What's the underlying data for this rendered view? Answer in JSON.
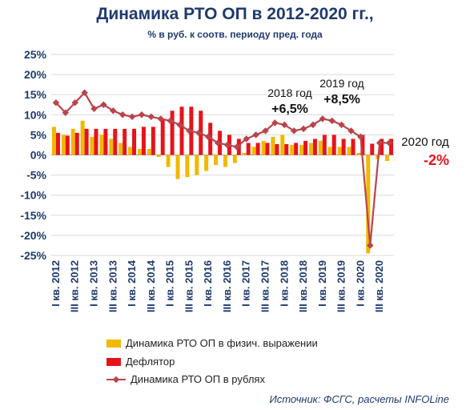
{
  "title": "Динамика РТО ОП в 2012-2020 гг.,",
  "subtitle": "% в руб. к соотв. периоду пред. года",
  "source": "Источник: ФСГС, расчеты INFOLine",
  "colors": {
    "physical": "#f2b800",
    "deflator": "#e5141a",
    "rubles": "#b8454b",
    "grid": "#d9d9d9"
  },
  "chart_data": {
    "type": "bar",
    "x_tick_labels": [
      "I кв. 2012",
      "III кв. 2012",
      "I кв. 2013",
      "III кв. 2013",
      "I кв. 2014",
      "III кв. 2014",
      "I кв. 2015",
      "III кв. 2015",
      "I кв. 2016",
      "III кв. 2016",
      "I кв. 2017",
      "III кв. 2017",
      "I кв. 2018",
      "III кв. 2018",
      "I кв. 2019",
      "III кв. 2019",
      "I кв. 2020",
      "III кв. 2020"
    ],
    "quarters": 36,
    "ylim": [
      -25,
      25
    ],
    "yticks": [
      "-25%",
      "-20%",
      "-15%",
      "-10%",
      "-5%",
      "0%",
      "5%",
      "10%",
      "15%",
      "20%",
      "25%"
    ],
    "grid": "horizontal",
    "series": [
      {
        "name": "Динамика РТО ОП в физич. выражении",
        "type": "bar",
        "values": [
          7,
          5,
          6.5,
          8.5,
          4.5,
          5,
          4,
          3,
          2,
          1.5,
          1.5,
          -0.5,
          -3,
          -6,
          -5.5,
          -5,
          -4,
          -2.5,
          -3,
          -2,
          0.5,
          2,
          3.5,
          4.5,
          5,
          2.5,
          2.5,
          3,
          3.5,
          2,
          2,
          2,
          0.5,
          -24.5,
          -1,
          -1.5
        ]
      },
      {
        "name": "Дефлятор",
        "type": "bar",
        "values": [
          5.5,
          4.8,
          5.5,
          6.5,
          6.5,
          6.5,
          6.5,
          6.5,
          6.5,
          7,
          7,
          9,
          11,
          12,
          12,
          11,
          8,
          6,
          5,
          4,
          3,
          3,
          3,
          2.7,
          2.7,
          3,
          3.5,
          4,
          5,
          5,
          4,
          4,
          5,
          2.8,
          4,
          4
        ]
      },
      {
        "name": "Динамика РТО ОП в рублях",
        "type": "line",
        "values": [
          13,
          10.5,
          13,
          15.5,
          11.5,
          12.5,
          11,
          10,
          9.5,
          10,
          9.5,
          9,
          8.5,
          7.5,
          6,
          5.5,
          4.5,
          3,
          2.5,
          2,
          4,
          5,
          6,
          8,
          7.5,
          6,
          6.5,
          7.5,
          9,
          8.5,
          7.5,
          6,
          4.5,
          -22.5,
          3,
          3
        ]
      }
    ],
    "annotations": [
      {
        "label": "2018 год",
        "value": "+6,5%"
      },
      {
        "label": "2019 год",
        "value": "+8,5%"
      },
      {
        "label": "2020 год",
        "value": "-2%"
      }
    ],
    "legend_position": "bottom"
  }
}
